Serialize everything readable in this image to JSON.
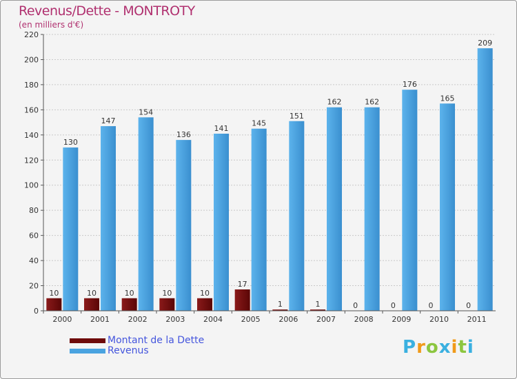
{
  "title": "Revenus/Dette - MONTROTY",
  "subtitle": "(en milliers d'€)",
  "logo": {
    "text": "Proxiti",
    "letters": [
      {
        "ch": "P",
        "color": "#3ab0e0"
      },
      {
        "ch": "r",
        "color": "#f09a1a"
      },
      {
        "ch": "o",
        "color": "#8cc63f"
      },
      {
        "ch": "x",
        "color": "#3ab0e0"
      },
      {
        "ch": "i",
        "color": "#f09a1a"
      },
      {
        "ch": "t",
        "color": "#8cc63f"
      },
      {
        "ch": "i",
        "color": "#3ab0e0"
      }
    ]
  },
  "legend": {
    "items": [
      {
        "label": "Montant de la Dette",
        "color": "#6e0a0a"
      },
      {
        "label": "Revenus",
        "color": "#4aa3e0"
      }
    ]
  },
  "chart_data": {
    "type": "bar",
    "title": "Revenus/Dette - MONTROTY",
    "ylabel": "(en milliers d'€)",
    "xlabel": "",
    "categories": [
      "2000",
      "2001",
      "2002",
      "2003",
      "2004",
      "2005",
      "2006",
      "2007",
      "2008",
      "2009",
      "2010",
      "2011"
    ],
    "series": [
      {
        "name": "Montant de la Dette",
        "color": "#6e0a0a",
        "values": [
          10,
          10,
          10,
          10,
          10,
          17,
          1,
          1,
          0,
          0,
          0,
          0
        ]
      },
      {
        "name": "Revenus",
        "color": "#4aa3e0",
        "values": [
          130,
          147,
          154,
          136,
          141,
          145,
          151,
          162,
          162,
          176,
          165,
          209
        ]
      }
    ],
    "ylim": [
      0,
      220
    ],
    "yticks": [
      0,
      20,
      40,
      60,
      80,
      100,
      120,
      140,
      160,
      180,
      200,
      220
    ],
    "grid": true,
    "legend_position": "bottom-left"
  }
}
